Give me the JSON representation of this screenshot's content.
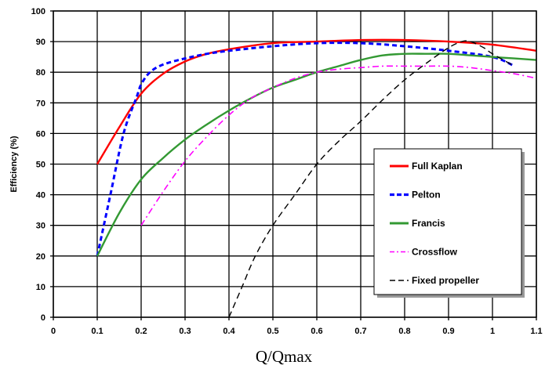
{
  "chart_data": {
    "type": "line",
    "title": "",
    "xlabel": "Q/Qmax",
    "ylabel": "Efficiency (%)",
    "xlim": [
      0,
      1.1
    ],
    "ylim": [
      0,
      100
    ],
    "x_ticks": [
      "0",
      "0.1",
      "0.2",
      "0.3",
      "0.4",
      "0.5",
      "0.6",
      "0.7",
      "0.8",
      "0.9",
      "1",
      "1.1"
    ],
    "y_ticks": [
      "0",
      "10",
      "20",
      "30",
      "40",
      "50",
      "60",
      "70",
      "80",
      "90",
      "100"
    ],
    "grid": true,
    "legend_position": "bottom-right",
    "series": [
      {
        "name": "Full Kaplan",
        "color": "#ff0000",
        "dash": "solid",
        "x": [
          0.1,
          0.15,
          0.2,
          0.25,
          0.3,
          0.35,
          0.4,
          0.5,
          0.6,
          0.7,
          0.8,
          0.9,
          1.0,
          1.1
        ],
        "y": [
          50,
          62,
          73,
          79.5,
          83.5,
          86,
          87.5,
          89.5,
          90,
          90.5,
          90.5,
          90,
          89,
          87
        ]
      },
      {
        "name": "Pelton",
        "color": "#0000ff",
        "dash": "dotted",
        "x": [
          0.1,
          0.13,
          0.16,
          0.19,
          0.2,
          0.22,
          0.25,
          0.3,
          0.35,
          0.4,
          0.5,
          0.6,
          0.7,
          0.8,
          0.9,
          1.0,
          1.05
        ],
        "y": [
          20,
          40,
          60,
          72,
          76,
          80,
          82.5,
          84.5,
          86,
          87,
          88.5,
          89.5,
          89.5,
          88.5,
          87,
          85,
          82
        ]
      },
      {
        "name": "Francis",
        "color": "#339933",
        "dash": "solid",
        "x": [
          0.1,
          0.15,
          0.2,
          0.25,
          0.3,
          0.35,
          0.4,
          0.45,
          0.5,
          0.55,
          0.6,
          0.65,
          0.7,
          0.75,
          0.8,
          0.85,
          0.9,
          0.95,
          1.0,
          1.05,
          1.1
        ],
        "y": [
          20,
          34,
          45,
          52,
          58,
          63,
          67.5,
          71.5,
          75,
          77.5,
          80,
          82,
          84,
          85.5,
          86,
          86,
          86,
          85.5,
          85,
          84.5,
          84
        ]
      },
      {
        "name": "Crossflow",
        "color": "#ff00ff",
        "dash": "dashdot",
        "x": [
          0.2,
          0.25,
          0.3,
          0.35,
          0.4,
          0.45,
          0.5,
          0.55,
          0.6,
          0.65,
          0.7,
          0.75,
          0.8,
          0.85,
          0.9,
          0.95,
          1.0,
          1.05,
          1.1
        ],
        "y": [
          30,
          41,
          51,
          59,
          66,
          71.5,
          75,
          78,
          80,
          81,
          81.5,
          82,
          82,
          82,
          82,
          81.5,
          80.5,
          79.5,
          78
        ]
      },
      {
        "name": "Fixed propeller",
        "color": "#000000",
        "dash": "dashed",
        "x": [
          0.4,
          0.43,
          0.46,
          0.5,
          0.55,
          0.6,
          0.65,
          0.7,
          0.75,
          0.8,
          0.85,
          0.9,
          0.93,
          0.95,
          0.98,
          1.0,
          1.05
        ],
        "y": [
          0,
          10,
          20,
          30,
          40,
          50,
          57.5,
          64,
          71,
          77.5,
          83,
          88,
          90,
          90,
          88,
          86,
          82
        ]
      }
    ]
  }
}
